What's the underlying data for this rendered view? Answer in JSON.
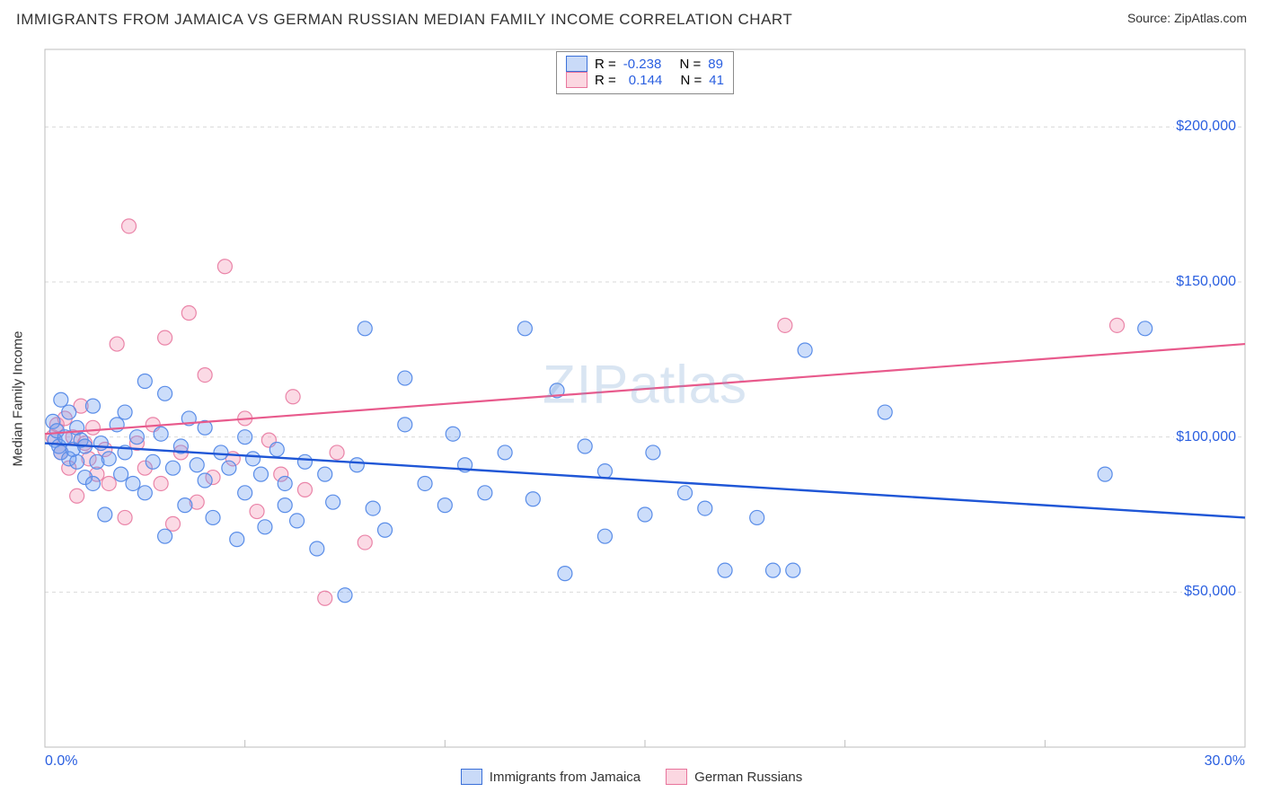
{
  "title": "IMMIGRANTS FROM JAMAICA VS GERMAN RUSSIAN MEDIAN FAMILY INCOME CORRELATION CHART",
  "source_label": "Source: ZipAtlas.com",
  "y_axis_label": "Median Family Income",
  "watermark": "ZIPatlas",
  "chart": {
    "type": "scatter",
    "xlim": [
      0,
      30
    ],
    "ylim": [
      0,
      225000
    ],
    "x_ticks": [
      0,
      30
    ],
    "x_tick_labels": [
      "0.0%",
      "30.0%"
    ],
    "y_ticks": [
      50000,
      100000,
      150000,
      200000
    ],
    "y_tick_labels": [
      "$50,000",
      "$100,000",
      "$150,000",
      "$200,000"
    ],
    "x_minor_ticks": [
      5,
      10,
      15,
      20,
      25
    ],
    "background_color": "#ffffff",
    "grid_color": "#d9d9d9",
    "axis_color": "#bdbdbd",
    "marker_radius": 8,
    "series": {
      "blue": {
        "label": "Immigrants from Jamaica",
        "fill": "rgba(108,157,240,0.35)",
        "stroke": "#5a8de8",
        "r_label": "R =",
        "r_value": "-0.238",
        "n_label": "N =",
        "n_value": "89",
        "trend": {
          "x1": 0,
          "y1": 98000,
          "x2": 30,
          "y2": 74000,
          "color": "#1f56d6",
          "width": 2.4
        },
        "points": [
          [
            0.2,
            105000
          ],
          [
            0.25,
            99000
          ],
          [
            0.3,
            102000
          ],
          [
            0.35,
            97000
          ],
          [
            0.4,
            112000
          ],
          [
            0.4,
            95000
          ],
          [
            0.5,
            100000
          ],
          [
            0.6,
            93000
          ],
          [
            0.6,
            108000
          ],
          [
            0.7,
            96000
          ],
          [
            0.8,
            103000
          ],
          [
            0.8,
            92000
          ],
          [
            0.9,
            99000
          ],
          [
            1.0,
            97000
          ],
          [
            1.0,
            87000
          ],
          [
            1.2,
            85000
          ],
          [
            1.2,
            110000
          ],
          [
            1.3,
            92000
          ],
          [
            1.4,
            98000
          ],
          [
            1.5,
            75000
          ],
          [
            1.6,
            93000
          ],
          [
            1.8,
            104000
          ],
          [
            1.9,
            88000
          ],
          [
            2.0,
            95000
          ],
          [
            2.0,
            108000
          ],
          [
            2.2,
            85000
          ],
          [
            2.3,
            100000
          ],
          [
            2.5,
            82000
          ],
          [
            2.5,
            118000
          ],
          [
            2.7,
            92000
          ],
          [
            2.9,
            101000
          ],
          [
            3.0,
            68000
          ],
          [
            3.0,
            114000
          ],
          [
            3.2,
            90000
          ],
          [
            3.4,
            97000
          ],
          [
            3.5,
            78000
          ],
          [
            3.6,
            106000
          ],
          [
            3.8,
            91000
          ],
          [
            4.0,
            86000
          ],
          [
            4.0,
            103000
          ],
          [
            4.2,
            74000
          ],
          [
            4.4,
            95000
          ],
          [
            4.6,
            90000
          ],
          [
            4.8,
            67000
          ],
          [
            5.0,
            100000
          ],
          [
            5.0,
            82000
          ],
          [
            5.2,
            93000
          ],
          [
            5.4,
            88000
          ],
          [
            5.5,
            71000
          ],
          [
            5.8,
            96000
          ],
          [
            6.0,
            85000
          ],
          [
            6.0,
            78000
          ],
          [
            6.3,
            73000
          ],
          [
            6.5,
            92000
          ],
          [
            6.8,
            64000
          ],
          [
            7.0,
            88000
          ],
          [
            7.2,
            79000
          ],
          [
            7.5,
            49000
          ],
          [
            7.8,
            91000
          ],
          [
            8.0,
            135000
          ],
          [
            8.2,
            77000
          ],
          [
            8.5,
            70000
          ],
          [
            9.0,
            119000
          ],
          [
            9.0,
            104000
          ],
          [
            9.5,
            85000
          ],
          [
            10.0,
            78000
          ],
          [
            10.2,
            101000
          ],
          [
            10.5,
            91000
          ],
          [
            11.0,
            82000
          ],
          [
            11.5,
            95000
          ],
          [
            12.0,
            135000
          ],
          [
            12.2,
            80000
          ],
          [
            12.8,
            115000
          ],
          [
            13.0,
            56000
          ],
          [
            13.5,
            97000
          ],
          [
            14.0,
            89000
          ],
          [
            14.0,
            68000
          ],
          [
            15.0,
            75000
          ],
          [
            15.2,
            95000
          ],
          [
            16.0,
            82000
          ],
          [
            16.5,
            77000
          ],
          [
            17.0,
            57000
          ],
          [
            17.8,
            74000
          ],
          [
            18.2,
            57000
          ],
          [
            18.7,
            57000
          ],
          [
            19.0,
            128000
          ],
          [
            21.0,
            108000
          ],
          [
            26.5,
            88000
          ],
          [
            27.5,
            135000
          ]
        ]
      },
      "pink": {
        "label": "German Russians",
        "fill": "rgba(244,150,180,0.35)",
        "stroke": "#ea84a8",
        "r_label": "R =",
        "r_value": "0.144",
        "n_label": "N =",
        "n_value": "41",
        "trend": {
          "x1": 0,
          "y1": 101000,
          "x2": 30,
          "y2": 130000,
          "color": "#e85a8c",
          "width": 2.2
        },
        "points": [
          [
            0.2,
            100000
          ],
          [
            0.3,
            104000
          ],
          [
            0.4,
            95000
          ],
          [
            0.5,
            106000
          ],
          [
            0.6,
            90000
          ],
          [
            0.7,
            100000
          ],
          [
            0.8,
            81000
          ],
          [
            0.9,
            110000
          ],
          [
            1.0,
            98000
          ],
          [
            1.1,
            93000
          ],
          [
            1.2,
            103000
          ],
          [
            1.3,
            88000
          ],
          [
            1.5,
            96000
          ],
          [
            1.6,
            85000
          ],
          [
            1.8,
            130000
          ],
          [
            2.0,
            74000
          ],
          [
            2.1,
            168000
          ],
          [
            2.3,
            98000
          ],
          [
            2.5,
            90000
          ],
          [
            2.7,
            104000
          ],
          [
            2.9,
            85000
          ],
          [
            3.0,
            132000
          ],
          [
            3.2,
            72000
          ],
          [
            3.4,
            95000
          ],
          [
            3.6,
            140000
          ],
          [
            3.8,
            79000
          ],
          [
            4.0,
            120000
          ],
          [
            4.2,
            87000
          ],
          [
            4.5,
            155000
          ],
          [
            4.7,
            93000
          ],
          [
            5.0,
            106000
          ],
          [
            5.3,
            76000
          ],
          [
            5.6,
            99000
          ],
          [
            5.9,
            88000
          ],
          [
            6.2,
            113000
          ],
          [
            6.5,
            83000
          ],
          [
            7.0,
            48000
          ],
          [
            7.3,
            95000
          ],
          [
            8.0,
            66000
          ],
          [
            18.5,
            136000
          ],
          [
            26.8,
            136000
          ]
        ]
      }
    }
  }
}
